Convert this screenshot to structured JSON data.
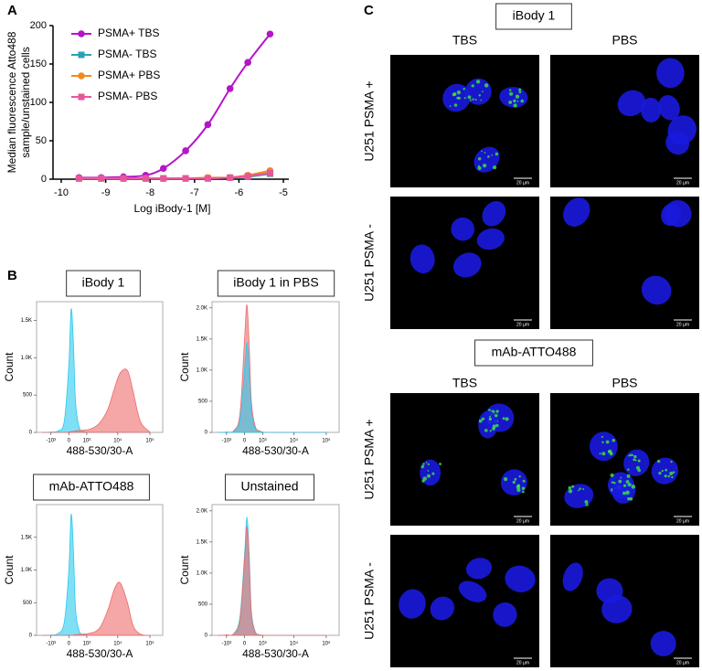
{
  "panel_labels": [
    "A",
    "B",
    "C"
  ],
  "chart_data": [
    {
      "type": "line",
      "x_label": "Log iBody-1 [M]",
      "y_label": [
        "Median fluorescence Atto488",
        "sample/unstained cells"
      ],
      "x": [
        -9.6,
        -9.1,
        -8.6,
        -8.1,
        -7.7,
        -7.2,
        -6.7,
        -6.2,
        -5.8,
        -5.3
      ],
      "series": [
        {
          "name": "PSMA+ TBS",
          "color": "#b514c8",
          "marker": "circle",
          "fit": true,
          "values": [
            2,
            2,
            3,
            5,
            14,
            37,
            71,
            118,
            152,
            189
          ]
        },
        {
          "name": "PSMA- TBS",
          "color": "#2aa0b4",
          "marker": "square",
          "fit": false,
          "values": [
            1,
            1,
            1,
            1,
            1,
            1,
            1,
            2,
            3,
            7
          ]
        },
        {
          "name": "PSMA+ PBS",
          "color": "#f08a1c",
          "marker": "circle",
          "fit": false,
          "values": [
            1,
            1,
            1,
            1,
            1,
            1,
            2,
            2,
            5,
            11
          ]
        },
        {
          "name": "PSMA- PBS",
          "color": "#e8569a",
          "marker": "square",
          "fit": false,
          "values": [
            1,
            1,
            1,
            1,
            1,
            1,
            1,
            2,
            4,
            8
          ]
        }
      ],
      "xlim": [
        -10,
        -5
      ],
      "xticks": [
        -10,
        -9,
        -8,
        -7,
        -6,
        -5
      ],
      "ylim": [
        0,
        200
      ],
      "yticks": [
        0,
        50,
        100,
        150,
        200
      ]
    },
    {
      "type": "area",
      "title": "iBody 1",
      "x_label": "488-530/30-A",
      "y_label": "Count",
      "x_scale": "asinh",
      "x": [
        -2000,
        -1000,
        -500,
        -200,
        0,
        100,
        200,
        300,
        500,
        800,
        1200,
        2000,
        3000,
        5000,
        8000,
        12000,
        20000,
        30000,
        50000,
        100000
      ],
      "series": [
        {
          "color": "#29c9ef",
          "values": [
            0,
            5,
            20,
            150,
            900,
            1650,
            1200,
            400,
            60,
            10,
            0,
            0,
            0,
            0,
            0,
            0,
            0,
            0,
            0,
            0
          ]
        },
        {
          "color": "#ef6b6b",
          "values": [
            0,
            0,
            0,
            0,
            5,
            10,
            15,
            20,
            25,
            30,
            40,
            80,
            150,
            320,
            600,
            800,
            830,
            550,
            150,
            5
          ]
        }
      ],
      "xlim": [
        -3000,
        250000
      ],
      "xticks": [
        {
          "value": -1000,
          "label": "-10³"
        },
        0,
        {
          "value": 1000,
          "label": "10³"
        },
        {
          "value": 10000,
          "label": "10⁴"
        },
        {
          "value": 100000,
          "label": "10⁵"
        }
      ],
      "ylim": [
        0,
        1750
      ],
      "yticks": [
        0,
        500,
        {
          "value": 1000,
          "label": "1.0K"
        },
        {
          "value": 1500,
          "label": "1.5K"
        }
      ]
    },
    {
      "type": "area",
      "title": "iBody 1 in PBS",
      "x_label": "488-530/30-A",
      "y_label": "Count",
      "x_scale": "asinh",
      "x": [
        -2000,
        -1000,
        -500,
        -200,
        0,
        100,
        200,
        300,
        500,
        800,
        1200,
        2000,
        3000,
        5000,
        8000,
        12000,
        20000,
        30000,
        50000,
        100000
      ],
      "series": [
        {
          "color": "#ef6b6b",
          "values": [
            0,
            5,
            30,
            300,
            1500,
            2050,
            1400,
            500,
            100,
            20,
            0,
            0,
            0,
            0,
            0,
            0,
            0,
            0,
            0,
            0
          ]
        },
        {
          "color": "#29c9ef",
          "values": [
            0,
            5,
            20,
            200,
            1000,
            1450,
            1000,
            350,
            60,
            10,
            0,
            0,
            0,
            0,
            0,
            0,
            0,
            0,
            0,
            0
          ]
        }
      ],
      "xlim": [
        -3000,
        250000
      ],
      "xticks": [
        {
          "value": -1000,
          "label": "-10³"
        },
        0,
        {
          "value": 1000,
          "label": "10³"
        },
        {
          "value": 10000,
          "label": "10⁴"
        },
        {
          "value": 100000,
          "label": "10⁵"
        }
      ],
      "ylim": [
        0,
        2100
      ],
      "yticks": [
        0,
        500,
        {
          "value": 1000,
          "label": "1.0K"
        },
        {
          "value": 1500,
          "label": "1.5K"
        },
        {
          "value": 2000,
          "label": "2.0K"
        }
      ]
    },
    {
      "type": "area",
      "title": "mAb-ATTO488",
      "x_label": "488-530/30-A",
      "y_label": "Count",
      "x_scale": "asinh",
      "x": [
        -2000,
        -1000,
        -500,
        -200,
        0,
        100,
        200,
        300,
        500,
        800,
        1200,
        2000,
        3000,
        5000,
        8000,
        12000,
        20000,
        30000,
        50000,
        100000
      ],
      "series": [
        {
          "color": "#29c9ef",
          "values": [
            0,
            5,
            30,
            200,
            1000,
            1850,
            1300,
            400,
            60,
            10,
            0,
            0,
            0,
            0,
            0,
            0,
            0,
            0,
            0,
            0
          ]
        },
        {
          "color": "#ef6b6b",
          "values": [
            0,
            0,
            0,
            0,
            0,
            0,
            5,
            10,
            15,
            20,
            30,
            60,
            150,
            400,
            720,
            800,
            500,
            150,
            20,
            0
          ]
        }
      ],
      "xlim": [
        -3000,
        250000
      ],
      "xticks": [
        {
          "value": -1000,
          "label": "-10³"
        },
        0,
        {
          "value": 1000,
          "label": "10³"
        },
        {
          "value": 10000,
          "label": "10⁴"
        },
        {
          "value": 100000,
          "label": "10⁵"
        }
      ],
      "ylim": [
        0,
        2000
      ],
      "yticks": [
        0,
        500,
        {
          "value": 1000,
          "label": "1.0K"
        },
        {
          "value": 1500,
          "label": "1.5K"
        }
      ]
    },
    {
      "type": "area",
      "title": "Unstained",
      "x_label": "488-530/30-A",
      "y_label": "Count",
      "x_scale": "asinh",
      "x": [
        -2000,
        -1000,
        -500,
        -200,
        0,
        100,
        200,
        300,
        500,
        800,
        1200,
        2000,
        3000,
        5000,
        8000,
        12000,
        20000,
        30000,
        50000,
        100000
      ],
      "series": [
        {
          "color": "#29c9ef",
          "values": [
            0,
            5,
            30,
            300,
            1300,
            1900,
            1300,
            400,
            60,
            10,
            0,
            0,
            0,
            0,
            0,
            0,
            0,
            0,
            0,
            0
          ]
        },
        {
          "color": "#ef6b6b",
          "values": [
            0,
            5,
            25,
            250,
            1200,
            1750,
            1200,
            350,
            50,
            8,
            0,
            0,
            0,
            0,
            0,
            0,
            0,
            0,
            0,
            0
          ]
        }
      ],
      "xlim": [
        -3000,
        250000
      ],
      "xticks": [
        {
          "value": -1000,
          "label": "-10³"
        },
        0,
        {
          "value": 1000,
          "label": "10³"
        },
        {
          "value": 10000,
          "label": "10⁴"
        },
        {
          "value": 100000,
          "label": "10⁵"
        }
      ],
      "ylim": [
        0,
        2100
      ],
      "yticks": [
        0,
        500,
        {
          "value": 1000,
          "label": "1.0K"
        },
        {
          "value": 1500,
          "label": "1.5K"
        },
        {
          "value": 2000,
          "label": "2.0K"
        }
      ]
    }
  ],
  "microscopy": {
    "groups": [
      {
        "title": "iBody 1",
        "columns": [
          "TBS",
          "PBS"
        ],
        "rows": [
          "U251 PSMA +",
          "U251 PSMA -"
        ]
      },
      {
        "title": "mAb-ATTO488",
        "columns": [
          "TBS",
          "PBS"
        ],
        "rows": [
          "U251 PSMA +",
          "U251 PSMA -"
        ]
      }
    ],
    "scale_bar": "20 µm"
  }
}
